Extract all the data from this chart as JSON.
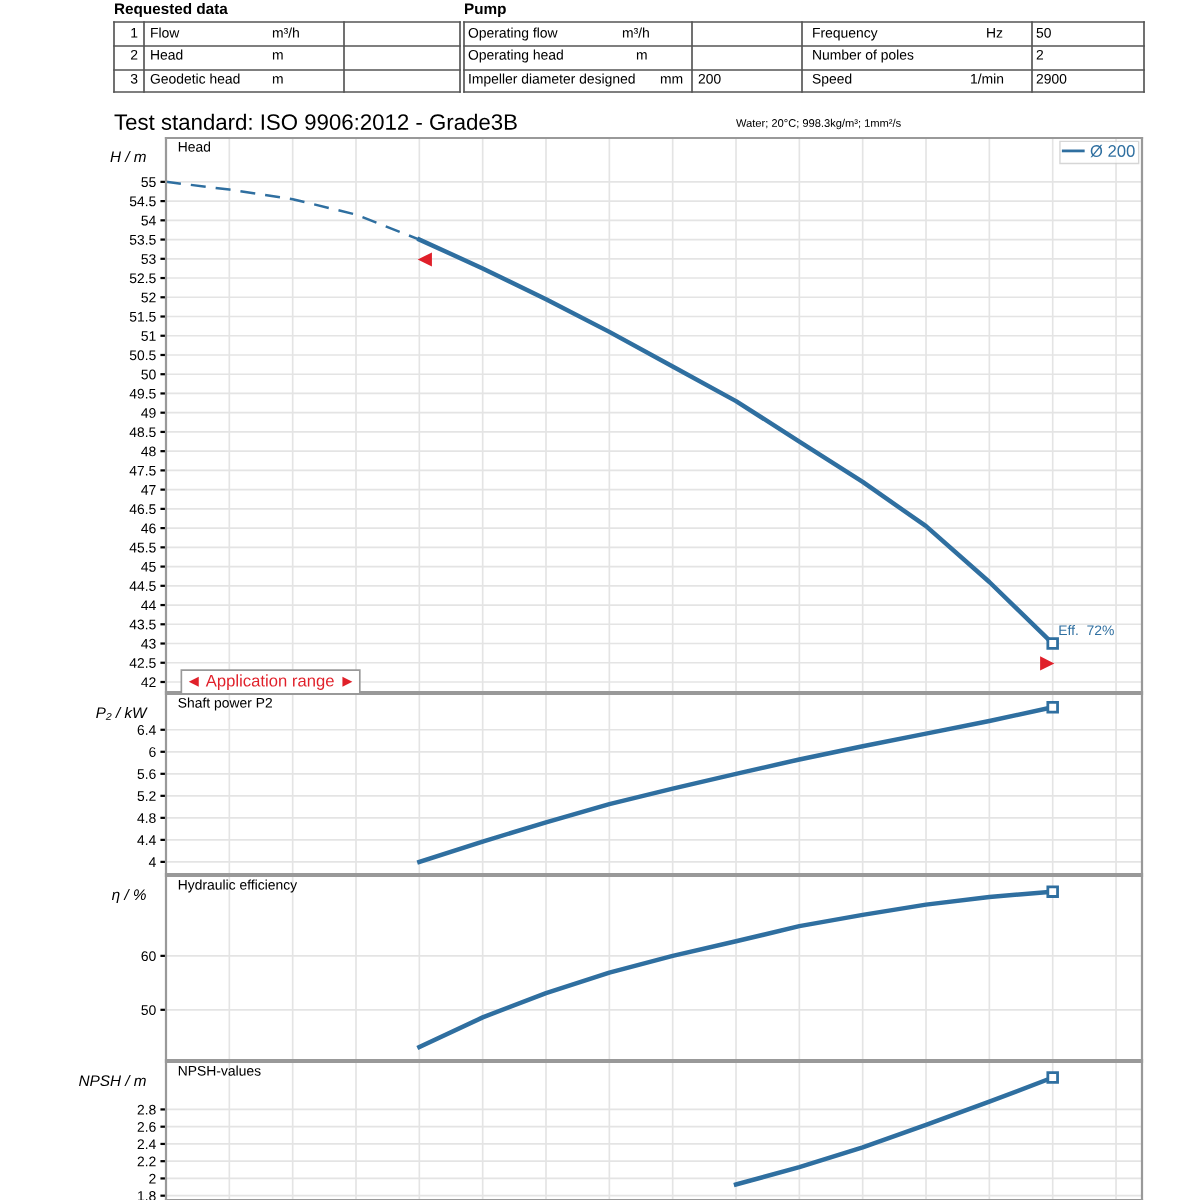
{
  "chart_data": [
    {
      "type": "other",
      "annotations": [
        "Requested data",
        "Pump",
        "1",
        "Flow",
        "m³/h",
        "2",
        "Head",
        "m",
        "3",
        "Geodetic head",
        "m",
        "Operating flow",
        "m³/h",
        "Operating head",
        "m",
        "Impeller diameter designed",
        "mm",
        "200",
        "Frequency",
        "Hz",
        "50",
        "Number of poles",
        "2",
        "Speed",
        "1/min",
        "2900"
      ]
    },
    {
      "type": "line",
      "title": "Test standard: ISO 9906:2012 - Grade3B",
      "subtitle": "Water; 20°C; 998.3kg/m³; 1mm²/s",
      "ylabel": "H / m",
      "categories": [
        null,
        null,
        null,
        null,
        null,
        null,
        null,
        null,
        null,
        null,
        null,
        null,
        null,
        null,
        null,
        null
      ],
      "series": [
        {
          "name": "Ø 200",
          "color": "#2f6fa0",
          "values": [
            null,
            null,
            null,
            null,
            53.5,
            52.75,
            51.95,
            51.1,
            50.2,
            49.3,
            48.25,
            47.2,
            46.05,
            44.6,
            43.0,
            null
          ]
        },
        {
          "color": "#2f6fa0",
          "line_style": "dashed",
          "values": [
            55.0,
            54.8,
            54.55,
            54.15,
            53.5,
            null,
            null,
            null,
            null,
            null,
            null,
            null,
            null,
            null,
            null,
            null
          ]
        }
      ],
      "ylim": [
        41.74,
        56.14
      ],
      "yticks": [
        42,
        42.5,
        43,
        43.5,
        44,
        44.5,
        45,
        45.5,
        46,
        46.5,
        47,
        47.5,
        48,
        48.5,
        49,
        49.5,
        50,
        50.5,
        51,
        51.5,
        52,
        52.5,
        53,
        53.5,
        54,
        54.5,
        55
      ],
      "grid": true,
      "legend": "top right",
      "tick_labels": "y",
      "annotations": [
        "Head",
        "◄ Application range ►",
        "Eff.  72%"
      ]
    },
    {
      "type": "line",
      "ylabel": "P₂ / kW",
      "categories": [
        null,
        null,
        null,
        null,
        null,
        null,
        null,
        null,
        null,
        null,
        null,
        null,
        null,
        null,
        null,
        null
      ],
      "series": [
        {
          "color": "#2f6fa0",
          "values": [
            null,
            null,
            null,
            null,
            4.0,
            4.37,
            4.72,
            5.05,
            5.33,
            5.6,
            5.86,
            6.1,
            6.33,
            6.56,
            6.81,
            null
          ]
        }
      ],
      "ylim": [
        3.78,
        7.05
      ],
      "yticks": [
        4,
        4.4,
        4.8,
        5.2,
        5.6,
        6,
        6.4
      ],
      "grid": true,
      "tick_labels": "y",
      "annotations": [
        "Shaft power P2"
      ]
    },
    {
      "type": "line",
      "ylabel": "η / %",
      "categories": [
        null,
        null,
        null,
        null,
        null,
        null,
        null,
        null,
        null,
        null,
        null,
        null,
        null,
        null,
        null,
        null
      ],
      "series": [
        {
          "color": "#2f6fa0",
          "values": [
            null,
            null,
            null,
            null,
            43.1,
            48.6,
            53.1,
            56.9,
            60.0,
            62.7,
            65.5,
            67.6,
            69.5,
            70.9,
            71.9,
            null
          ]
        }
      ],
      "ylim": [
        40.7,
        74.8
      ],
      "yticks": [
        50,
        60
      ],
      "grid": true,
      "tick_labels": "y",
      "annotations": [
        "Hydraulic efficiency"
      ]
    },
    {
      "type": "line",
      "ylabel": "NPSH / m",
      "categories": [
        null,
        null,
        null,
        null,
        null,
        null,
        null,
        null,
        null,
        null,
        null,
        null,
        null,
        null,
        null,
        null
      ],
      "series": [
        {
          "color": "#2f6fa0",
          "values": [
            null,
            null,
            null,
            null,
            null,
            null,
            null,
            null,
            null,
            1.93,
            2.13,
            2.36,
            2.62,
            2.89,
            3.17,
            null
          ]
        }
      ],
      "ylim": [
        1.75,
        3.35
      ],
      "yticks": [
        1.8,
        2,
        2.2,
        2.4,
        2.6,
        2.8
      ],
      "grid": true,
      "tick_labels": "y",
      "annotations": [
        "NPSH-values"
      ]
    }
  ]
}
